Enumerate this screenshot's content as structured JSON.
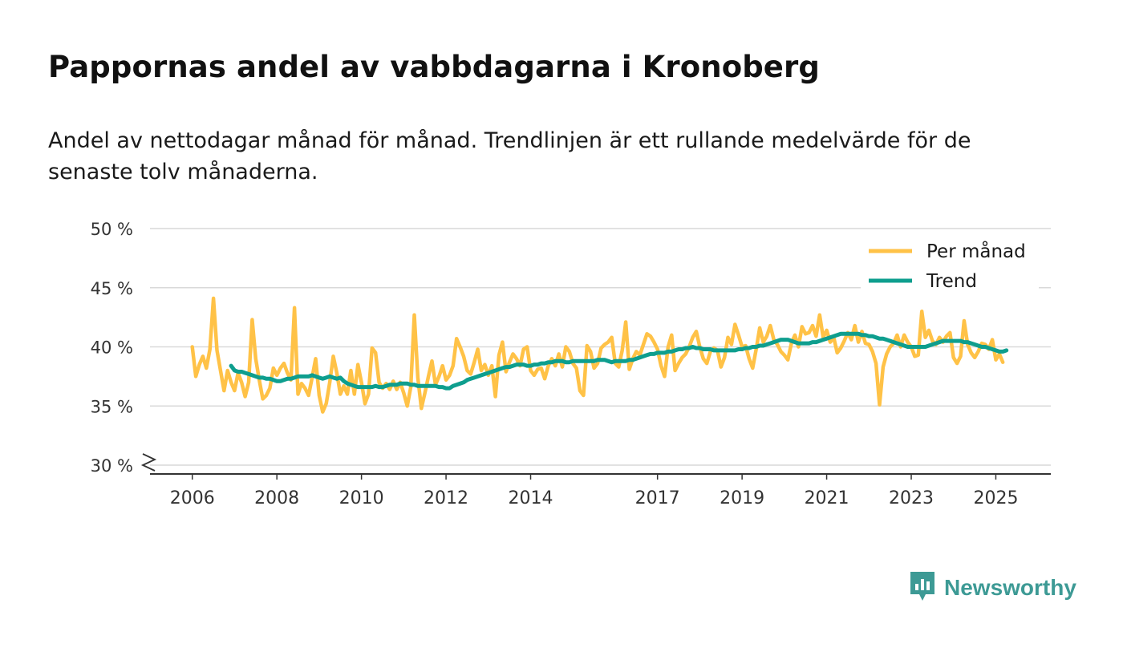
{
  "title": "Pappornas andel av vabbdagarna i Kronoberg",
  "subtitle": "Andel av nettodagar månad för månad. Trendlinjen är ett rullande medelvärde för de senaste tolv månaderna.",
  "brand": {
    "name": "Newsworthy",
    "icon": "newsworthy-logo-icon"
  },
  "colors": {
    "monthly": "#FFC247",
    "trend": "#0E9E8E",
    "grid": "#d9d9d9",
    "axis": "#333333"
  },
  "chart_data": {
    "type": "line",
    "ylim": [
      30,
      50
    ],
    "yticks": [
      30,
      35,
      40,
      45,
      50
    ],
    "ytick_labels": [
      "30 %",
      "35 %",
      "40 %",
      "45 %",
      "50 %"
    ],
    "xlim": [
      2005.0,
      2026.3
    ],
    "xticks": [
      2006,
      2008,
      2010,
      2012,
      2014,
      2017,
      2019,
      2021,
      2023,
      2025
    ],
    "xtick_labels": [
      "2006",
      "2008",
      "2010",
      "2012",
      "2014",
      "2017",
      "2019",
      "2021",
      "2023",
      "2025"
    ],
    "axis_break": true,
    "legend": {
      "position": "top-right",
      "entries": [
        "Per månad",
        "Trend"
      ]
    },
    "series": [
      {
        "name": "Per månad",
        "start": 2006.0,
        "step_months": 1,
        "values": [
          40.0,
          37.5,
          38.5,
          39.2,
          38.2,
          39.8,
          44.1,
          39.7,
          38.0,
          36.3,
          38.0,
          37.0,
          36.3,
          37.8,
          37.0,
          35.8,
          37.0,
          42.3,
          39.0,
          37.2,
          35.6,
          35.9,
          36.5,
          38.2,
          37.6,
          38.2,
          38.6,
          37.8,
          37.2,
          43.3,
          36.0,
          36.9,
          36.5,
          35.9,
          37.4,
          39.0,
          35.9,
          34.5,
          35.2,
          37.0,
          39.2,
          37.8,
          36.0,
          36.7,
          36.0,
          38.0,
          36.0,
          38.5,
          37.0,
          35.2,
          36.0,
          39.9,
          39.5,
          37.0,
          36.5,
          36.9,
          36.4,
          37.1,
          36.4,
          37.0,
          36.1,
          35.0,
          36.6,
          42.7,
          37.4,
          34.8,
          36.1,
          37.5,
          38.8,
          36.8,
          37.5,
          38.4,
          37.2,
          37.6,
          38.4,
          40.7,
          40.0,
          39.2,
          38.0,
          37.7,
          38.7,
          39.8,
          38.0,
          38.5,
          37.6,
          38.4,
          35.8,
          39.3,
          40.4,
          37.9,
          38.7,
          39.4,
          39.0,
          38.4,
          39.8,
          40.0,
          38.0,
          37.6,
          38.1,
          38.2,
          37.3,
          38.4,
          39.0,
          38.4,
          39.4,
          38.3,
          40.0,
          39.6,
          38.6,
          38.2,
          36.3,
          35.9,
          40.1,
          39.6,
          38.2,
          38.6,
          39.9,
          40.2,
          40.4,
          40.8,
          38.6,
          38.3,
          39.7,
          42.1,
          38.1,
          39.0,
          39.6,
          39.3,
          40.2,
          41.1,
          40.9,
          40.4,
          39.8,
          38.4,
          37.5,
          40.0,
          41.0,
          38.0,
          38.6,
          39.1,
          39.4,
          40.0,
          40.8,
          41.3,
          40.0,
          39.0,
          38.6,
          39.6,
          39.9,
          39.7,
          38.3,
          39.1,
          40.8,
          40.2,
          41.9,
          41.0,
          40.0,
          40.1,
          39.0,
          38.2,
          39.8,
          41.6,
          40.4,
          40.9,
          41.8,
          40.6,
          40.2,
          39.6,
          39.3,
          38.9,
          40.3,
          41.0,
          40.0,
          41.7,
          41.1,
          41.2,
          41.8,
          40.9,
          42.7,
          40.8,
          41.4,
          40.4,
          40.8,
          39.5,
          39.9,
          40.5,
          41.2,
          40.6,
          41.8,
          40.4,
          41.3,
          40.3,
          40.2,
          39.6,
          38.6,
          35.1,
          38.3,
          39.4,
          40.0,
          40.3,
          41.0,
          40.0,
          41.0,
          40.4,
          40.0,
          39.2,
          39.3,
          43.0,
          40.8,
          41.4,
          40.5,
          40.2,
          40.8,
          40.4,
          40.9,
          41.2,
          39.1,
          38.6,
          39.2,
          42.2,
          40.2,
          39.5,
          39.1,
          39.6,
          40.3,
          40.2,
          39.8,
          40.6,
          38.9,
          39.4,
          38.7
        ]
      },
      {
        "name": "Trend",
        "start": 2006.917,
        "step_months": 1,
        "values": [
          38.4,
          38.0,
          37.9,
          37.9,
          37.8,
          37.7,
          37.6,
          37.5,
          37.4,
          37.4,
          37.3,
          37.3,
          37.2,
          37.1,
          37.1,
          37.2,
          37.3,
          37.3,
          37.4,
          37.5,
          37.5,
          37.5,
          37.5,
          37.6,
          37.5,
          37.4,
          37.3,
          37.4,
          37.5,
          37.4,
          37.3,
          37.4,
          37.1,
          36.9,
          36.8,
          36.7,
          36.6,
          36.6,
          36.6,
          36.6,
          36.6,
          36.7,
          36.6,
          36.6,
          36.7,
          36.8,
          36.8,
          36.8,
          36.9,
          36.9,
          36.9,
          36.8,
          36.8,
          36.7,
          36.7,
          36.7,
          36.7,
          36.7,
          36.7,
          36.6,
          36.6,
          36.5,
          36.5,
          36.7,
          36.8,
          36.9,
          37.0,
          37.2,
          37.3,
          37.4,
          37.5,
          37.6,
          37.7,
          37.8,
          37.9,
          38.0,
          38.1,
          38.2,
          38.3,
          38.3,
          38.4,
          38.5,
          38.5,
          38.5,
          38.4,
          38.4,
          38.5,
          38.5,
          38.6,
          38.6,
          38.7,
          38.7,
          38.8,
          38.8,
          38.8,
          38.7,
          38.7,
          38.8,
          38.8,
          38.8,
          38.8,
          38.8,
          38.8,
          38.8,
          38.9,
          38.9,
          38.9,
          38.8,
          38.7,
          38.8,
          38.8,
          38.8,
          38.8,
          38.9,
          38.9,
          39.0,
          39.1,
          39.2,
          39.3,
          39.4,
          39.4,
          39.5,
          39.5,
          39.5,
          39.6,
          39.6,
          39.7,
          39.8,
          39.8,
          39.9,
          39.9,
          40.0,
          39.9,
          39.9,
          39.8,
          39.8,
          39.8,
          39.7,
          39.7,
          39.7,
          39.7,
          39.7,
          39.7,
          39.7,
          39.8,
          39.8,
          39.9,
          39.9,
          40.0,
          40.0,
          40.1,
          40.1,
          40.2,
          40.3,
          40.4,
          40.5,
          40.6,
          40.6,
          40.6,
          40.5,
          40.4,
          40.3,
          40.3,
          40.3,
          40.3,
          40.4,
          40.4,
          40.5,
          40.6,
          40.7,
          40.8,
          40.9,
          41.0,
          41.1,
          41.1,
          41.1,
          41.1,
          41.1,
          41.1,
          41.0,
          41.0,
          40.9,
          40.9,
          40.8,
          40.7,
          40.7,
          40.6,
          40.5,
          40.4,
          40.3,
          40.2,
          40.1,
          40.0,
          40.0,
          40.0,
          40.0,
          40.0,
          40.0,
          40.1,
          40.2,
          40.3,
          40.4,
          40.5,
          40.5,
          40.5,
          40.5,
          40.5,
          40.5,
          40.4,
          40.4,
          40.3,
          40.2,
          40.1,
          40.0,
          40.0,
          39.9,
          39.8,
          39.7,
          39.6,
          39.6,
          39.7
        ]
      }
    ]
  }
}
